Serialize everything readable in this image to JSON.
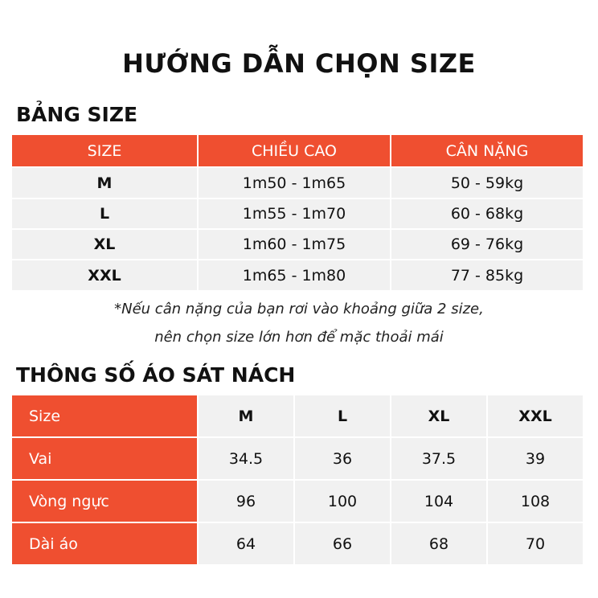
{
  "title": "HƯỚNG DẪN CHỌN SIZE",
  "size_table": {
    "heading": "BẢNG SIZE",
    "headers": [
      "SIZE",
      "CHIỀU CAO",
      "CÂN NẶNG"
    ],
    "rows": [
      [
        "M",
        "1m50 - 1m65",
        "50 - 59kg"
      ],
      [
        "L",
        "1m55 - 1m70",
        "60 - 68kg"
      ],
      [
        "XL",
        "1m60 - 1m75",
        "69 - 76kg"
      ],
      [
        "XXL",
        "1m65 - 1m80",
        "77 - 85kg"
      ]
    ]
  },
  "note": [
    "*Nếu cân nặng của bạn rơi vào khoảng giữa 2 size,",
    "nên chọn size lớn hơn để mặc thoải mái"
  ],
  "spec_table": {
    "heading": "THÔNG SỐ ÁO SÁT NÁCH",
    "rows": [
      [
        "Size",
        "M",
        "L",
        "XL",
        "XXL"
      ],
      [
        "Vai",
        "34.5",
        "36",
        "37.5",
        "39"
      ],
      [
        "Vòng ngực",
        "96",
        "100",
        "104",
        "108"
      ],
      [
        "Dài áo",
        "64",
        "66",
        "68",
        "70"
      ]
    ]
  },
  "colors": {
    "accent": "#ef4f30",
    "cell": "#f1f1f1"
  }
}
